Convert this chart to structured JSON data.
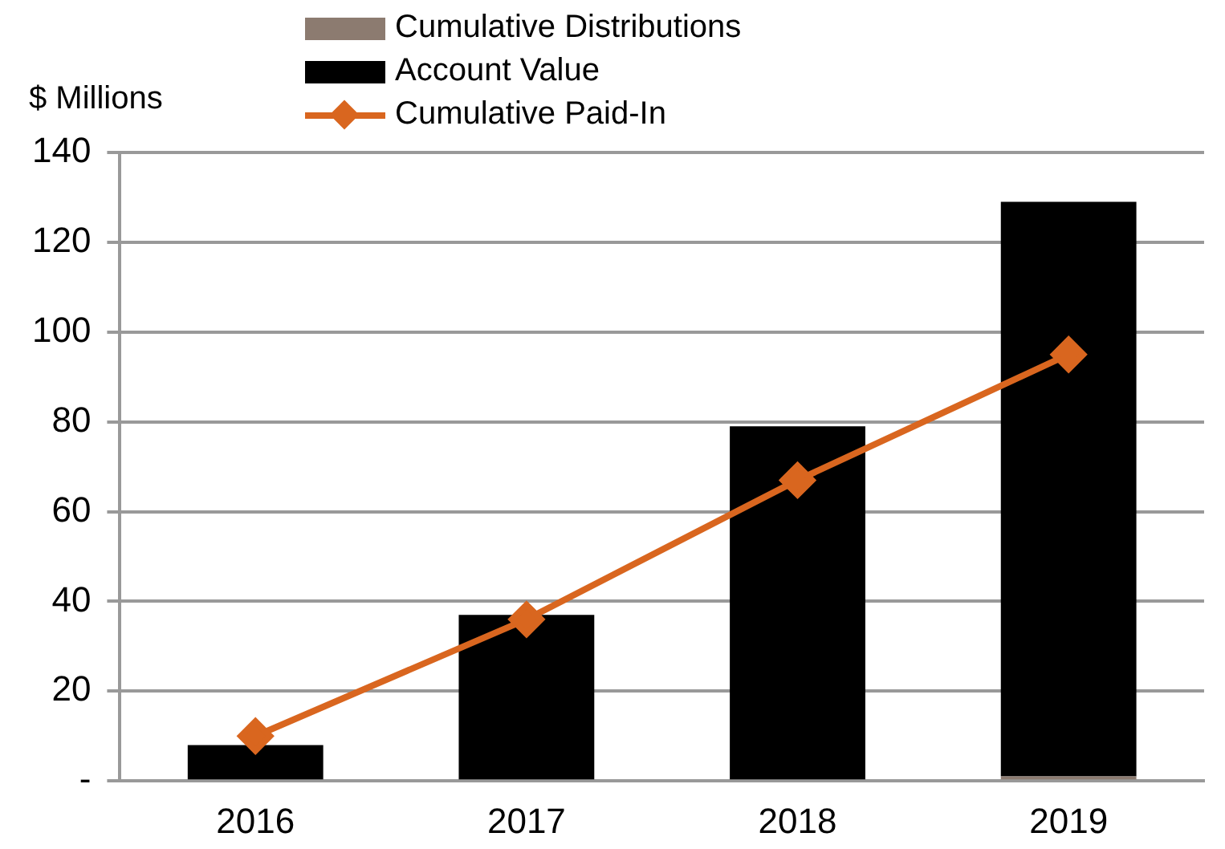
{
  "chart_data": {
    "type": "bar",
    "stacked": true,
    "ylabel": "$ Millions",
    "categories": [
      "2016",
      "2017",
      "2018",
      "2019"
    ],
    "series": [
      {
        "name": "Cumulative Distributions",
        "color": "#8c7b70",
        "values": [
          0,
          0,
          0,
          1
        ]
      },
      {
        "name": "Account Value",
        "color": "#000000",
        "values": [
          8,
          37,
          79,
          128
        ]
      },
      {
        "name": "Cumulative Paid-In",
        "type": "line",
        "color": "#d9661f",
        "values": [
          10,
          36,
          67,
          95
        ]
      }
    ],
    "ylim": [
      0,
      140
    ],
    "yticks": [
      {
        "value": 0,
        "label": "-"
      },
      20,
      40,
      60,
      80,
      100,
      120,
      140
    ],
    "grid": "y",
    "legend": "top",
    "marker": "diamond",
    "line_style": "solid"
  }
}
